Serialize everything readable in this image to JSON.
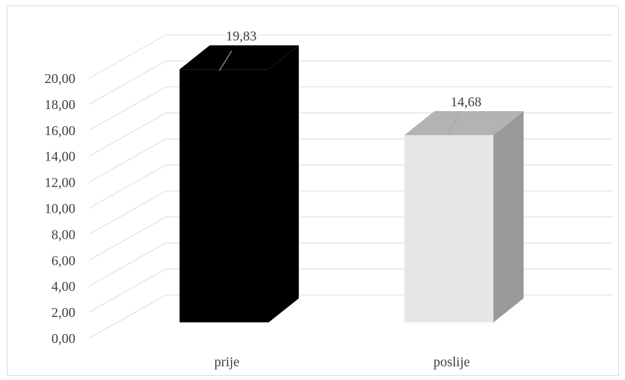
{
  "chart_data": {
    "type": "bar",
    "title": "",
    "xlabel": "",
    "ylabel": "",
    "categories": [
      "prije",
      "poslije"
    ],
    "values": [
      19.83,
      14.68
    ],
    "value_labels": [
      "19,83",
      "14,68"
    ],
    "yticks": [
      "0,00",
      "2,00",
      "4,00",
      "6,00",
      "8,00",
      "10,00",
      "12,00",
      "14,00",
      "16,00",
      "18,00",
      "20,00"
    ],
    "ylim": [
      0,
      20
    ],
    "grid": true,
    "legend": "none",
    "style": "3d-column",
    "colors": {
      "prije": {
        "front": "#000000",
        "side": "#000000",
        "top": "#000000"
      },
      "poslije": {
        "front": "#e6e6e6",
        "side": "#999999",
        "top": "#b3b3b3"
      },
      "grid": "#d9d9d9",
      "text": "#404040"
    }
  }
}
